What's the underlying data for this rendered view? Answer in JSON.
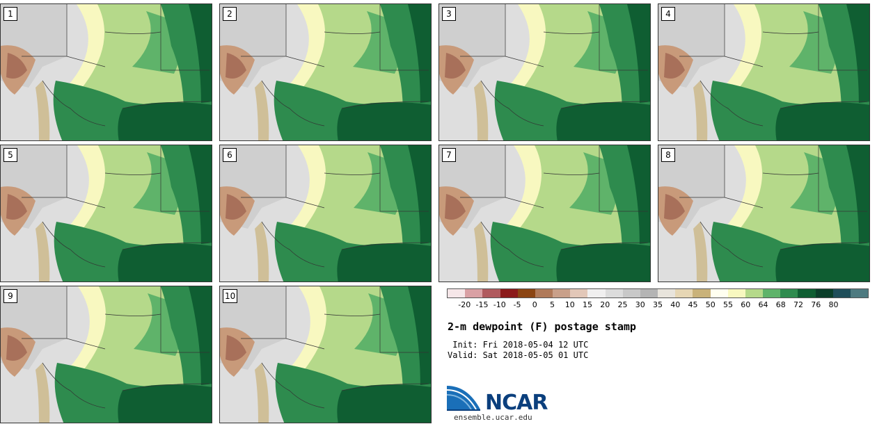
{
  "panels": [
    {
      "label": "1"
    },
    {
      "label": "2"
    },
    {
      "label": "3"
    },
    {
      "label": "4"
    },
    {
      "label": "5"
    },
    {
      "label": "6"
    },
    {
      "label": "7"
    },
    {
      "label": "8"
    },
    {
      "label": "9"
    },
    {
      "label": "10"
    }
  ],
  "colorbar": {
    "colors": [
      "#f5e6e8",
      "#d9a0a4",
      "#b05a5e",
      "#8b1a1a",
      "#8b4513",
      "#b07a5a",
      "#c9a08a",
      "#e2c7b8",
      "#f0efef",
      "#dcdcdc",
      "#c8c8c8",
      "#b4b4b4",
      "#e8e4dc",
      "#e6d6b4",
      "#c9b27a",
      "#fffff0",
      "#f8f8c0",
      "#b5d98a",
      "#5fb36a",
      "#2e8b4e",
      "#0f5e32",
      "#0b3f2a",
      "#1f4e5a",
      "#4e7a80"
    ],
    "tick_labels": [
      "-20",
      "-15",
      "-10",
      "-5",
      "0",
      "5",
      "10",
      "15",
      "20",
      "25",
      "30",
      "35",
      "40",
      "45",
      "50",
      "55",
      "60",
      "64",
      "68",
      "72",
      "76",
      "80"
    ]
  },
  "title": "2-m dewpoint (F) postage stamp",
  "init_text": " Init: Fri 2018-05-04 12 UTC",
  "valid_text": "Valid: Sat 2018-05-05 01 UTC",
  "logo_text": "NCAR",
  "website": "ensemble.ucar.edu"
}
